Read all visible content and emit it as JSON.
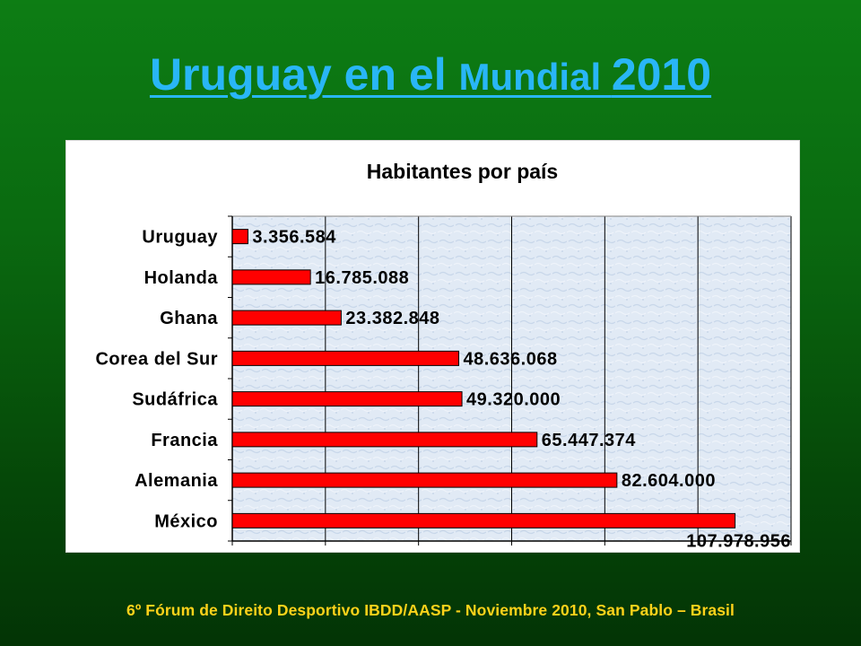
{
  "slide": {
    "title_part1": "Uruguay en el ",
    "title_part2": "Mundial ",
    "title_part3": "2010",
    "footer": "6º Fórum de Direito Desportivo IBDD/AASP - Noviembre 2010, San Pablo – Brasil"
  },
  "colors": {
    "background": "#0a6a10",
    "title": "#29b6f6",
    "footer": "#ffd21a",
    "bar_fill": "#ff0000",
    "bar_stroke": "#000000",
    "plot_background": "#dfe9f5"
  },
  "chart_data": {
    "type": "bar",
    "orientation": "horizontal",
    "title": "Habitantes por país",
    "categories": [
      "Uruguay",
      "Holanda",
      "Ghana",
      "Corea del Sur",
      "Sudáfrica",
      "Francia",
      "Alemania",
      "México"
    ],
    "values": [
      3356584,
      16785088,
      23382848,
      48636068,
      49320000,
      65447374,
      82604000,
      107978956
    ],
    "data_labels": [
      "3.356.584",
      "16.785.088",
      "23.382.848",
      "48.636.068",
      "49.320.000",
      "65.447.374",
      "82.604.000",
      "107.978.956"
    ],
    "xlim": [
      0,
      120000000
    ],
    "xticks": [
      0,
      20000000,
      40000000,
      60000000,
      80000000,
      100000000,
      120000000
    ],
    "xtick_labels_shown": false,
    "grid": "vertical",
    "legend": "none"
  }
}
